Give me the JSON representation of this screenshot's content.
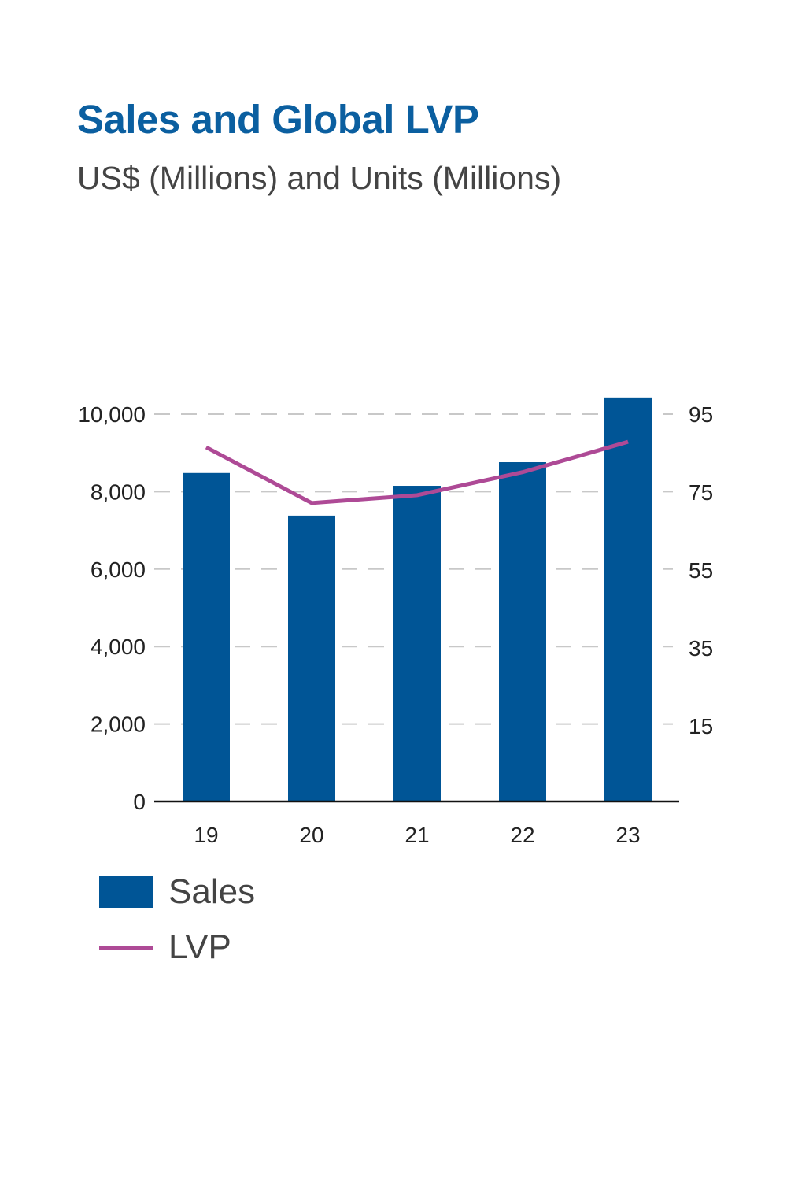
{
  "title": "Sales and Global LVP",
  "subtitle": "US$ (Millions) and Units (Millions)",
  "chart_data": {
    "type": "bar+line",
    "title": "Sales and Global LVP",
    "subtitle": "US$ (Millions) and Units (Millions)",
    "categories": [
      "19",
      "20",
      "21",
      "22",
      "23"
    ],
    "series": [
      {
        "name": "Sales",
        "type": "bar",
        "axis": "left",
        "color": "#005596",
        "values": [
          8480,
          7380,
          8150,
          8760,
          10430
        ]
      },
      {
        "name": "LVP",
        "type": "line",
        "axis": "right",
        "color": "#ae4a96",
        "values": [
          86.5,
          72.2,
          74.2,
          80.1,
          87.9
        ]
      }
    ],
    "y_left": {
      "ylim": [
        0,
        10000
      ],
      "ticks": [
        "0",
        "2,000",
        "4,000",
        "6,000",
        "8,000",
        "10,000"
      ],
      "tick_values": [
        0,
        2000,
        4000,
        6000,
        8000,
        10000
      ]
    },
    "y_right": {
      "ylim": [
        -4.4,
        95
      ],
      "ticks": [
        "15",
        "35",
        "55",
        "75",
        "95"
      ],
      "tick_values": [
        15,
        35,
        55,
        75,
        95
      ]
    },
    "grid": "horizontal dashed",
    "legend": "bottom-left"
  }
}
